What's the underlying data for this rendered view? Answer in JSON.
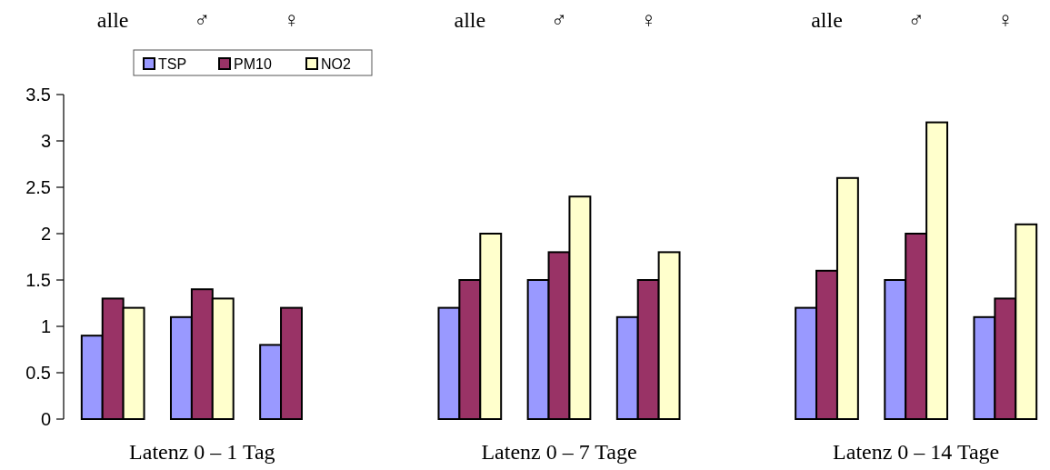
{
  "chart_data": {
    "type": "bar",
    "categories": [
      "alle",
      "♂",
      "♀",
      null,
      "alle",
      "♂",
      "♀",
      null,
      "alle",
      "♂",
      "♀"
    ],
    "series": [
      {
        "name": "TSP",
        "color": "#9999ff",
        "values": [
          0.9,
          1.1,
          0.8,
          null,
          1.2,
          1.5,
          1.1,
          null,
          1.2,
          1.5,
          1.1
        ]
      },
      {
        "name": "PM10",
        "color": "#993366",
        "values": [
          1.3,
          1.4,
          1.2,
          null,
          1.5,
          1.8,
          1.5,
          null,
          1.6,
          2.0,
          1.3
        ]
      },
      {
        "name": "NO2",
        "color": "#ffffcc",
        "values": [
          1.2,
          1.3,
          null,
          null,
          2.0,
          2.4,
          1.8,
          null,
          2.6,
          3.2,
          2.1
        ]
      }
    ],
    "ylim": [
      0,
      3.5
    ],
    "yticks": [
      0,
      0.5,
      1,
      1.5,
      2,
      2.5,
      3,
      3.5
    ],
    "grid": false,
    "legend": "top",
    "annotations": [
      "Latenz 0 – 1 Tag",
      "Latenz 0 – 7 Tage",
      "Latenz 0 – 14 Tage"
    ]
  }
}
